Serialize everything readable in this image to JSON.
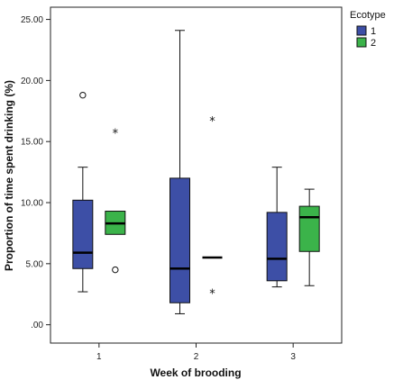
{
  "chart_data": {
    "type": "boxplot",
    "xlabel": "Week of brooding",
    "ylabel": "Proportion of time spent drinking (%)",
    "categories": [
      "1",
      "2",
      "3"
    ],
    "y_ticks": [
      ".00",
      "5.00",
      "10.00",
      "15.00",
      "20.00",
      "25.00"
    ],
    "ylim": [
      -1.5,
      26
    ],
    "grid": false,
    "legend": {
      "title": "Ecotype",
      "position": "right"
    },
    "series": [
      {
        "name": "1",
        "color": "#3d4fa6",
        "boxes": [
          {
            "category": "1",
            "min": 2.7,
            "q1": 4.6,
            "median": 5.9,
            "q3": 10.2,
            "max": 12.9,
            "outliers": [
              {
                "value": 18.8,
                "marker": "circle"
              }
            ]
          },
          {
            "category": "2",
            "min": 0.9,
            "q1": 1.8,
            "median": 4.6,
            "q3": 12.0,
            "max": 24.1,
            "outliers": []
          },
          {
            "category": "3",
            "min": 3.1,
            "q1": 3.6,
            "median": 5.4,
            "q3": 9.2,
            "max": 12.9,
            "outliers": []
          }
        ]
      },
      {
        "name": "2",
        "color": "#3bb34a",
        "boxes": [
          {
            "category": "1",
            "min": 7.4,
            "q1": 7.4,
            "median": 8.3,
            "q3": 9.3,
            "max": 9.3,
            "outliers": [
              {
                "value": 15.7,
                "marker": "star"
              },
              {
                "value": 4.5,
                "marker": "circle"
              }
            ]
          },
          {
            "category": "2",
            "min": 5.5,
            "q1": 5.5,
            "median": 5.5,
            "q3": 5.5,
            "max": 5.5,
            "outliers": [
              {
                "value": 16.7,
                "marker": "star"
              },
              {
                "value": 2.6,
                "marker": "star"
              }
            ]
          },
          {
            "category": "3",
            "min": 3.2,
            "q1": 6.0,
            "median": 8.8,
            "q3": 9.7,
            "max": 11.1,
            "outliers": []
          }
        ]
      }
    ]
  }
}
